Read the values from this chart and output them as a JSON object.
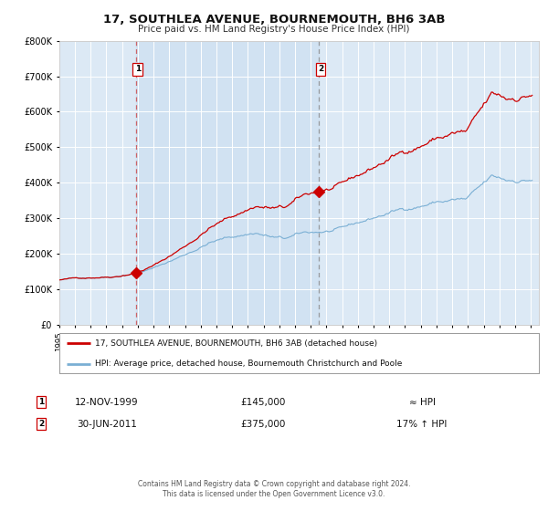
{
  "title": "17, SOUTHLEA AVENUE, BOURNEMOUTH, BH6 3AB",
  "subtitle": "Price paid vs. HM Land Registry's House Price Index (HPI)",
  "background_color": "#ffffff",
  "plot_bg_color": "#dce9f5",
  "grid_color": "#ffffff",
  "red_line_color": "#cc0000",
  "blue_line_color": "#7aafd4",
  "sale1_year": 1999.87,
  "sale1_price": 145000,
  "sale1_date_str": "12-NOV-1999",
  "sale1_relation": "≈ HPI",
  "sale2_year": 2011.5,
  "sale2_price": 375000,
  "sale2_date_str": "30-JUN-2011",
  "sale2_relation": "17% ↑ HPI",
  "legend_line1": "17, SOUTHLEA AVENUE, BOURNEMOUTH, BH6 3AB (detached house)",
  "legend_line2": "HPI: Average price, detached house, Bournemouth Christchurch and Poole",
  "footer1": "Contains HM Land Registry data © Crown copyright and database right 2024.",
  "footer2": "This data is licensed under the Open Government Licence v3.0.",
  "ylim_max": 800000,
  "xmin": 1995.0,
  "xmax": 2025.5,
  "yticks": [
    0,
    100000,
    200000,
    300000,
    400000,
    500000,
    600000,
    700000,
    800000
  ],
  "ytick_labels": [
    "£0",
    "£100K",
    "£200K",
    "£300K",
    "£400K",
    "£500K",
    "£600K",
    "£700K",
    "£800K"
  ]
}
